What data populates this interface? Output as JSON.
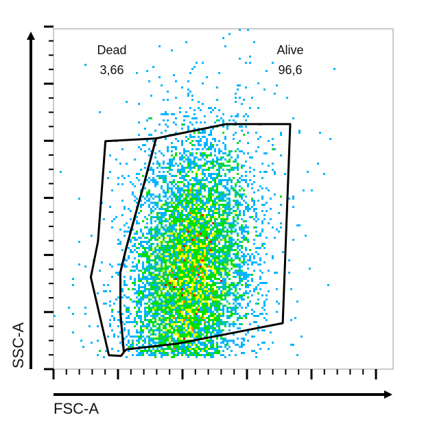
{
  "chart_data": {
    "type": "scatter",
    "subtype": "flow-cytometry density plot with gates",
    "xlabel": "FSC-A",
    "ylabel": "SSC-A",
    "xlim": [
      0,
      1
    ],
    "ylim": [
      0,
      1
    ],
    "grid": false,
    "density_colormap": [
      "#0000ff",
      "#00b4ff",
      "#00e000",
      "#ffff00",
      "#ff8000",
      "#ff0000"
    ],
    "population": {
      "center": [
        0.4,
        0.27
      ],
      "spread": [
        0.085,
        0.19
      ],
      "orientation_deg": 18,
      "events": 9000
    },
    "gates": [
      {
        "name": "Dead",
        "label": "Dead",
        "value": "3,66",
        "label_position": "top-left",
        "vertices": [
          [
            0.153,
            0.67
          ],
          [
            0.302,
            0.678
          ],
          [
            0.264,
            0.535
          ],
          [
            0.24,
            0.45
          ],
          [
            0.214,
            0.355
          ],
          [
            0.197,
            0.285
          ],
          [
            0.197,
            0.165
          ],
          [
            0.207,
            0.05
          ],
          [
            0.199,
            0.039
          ],
          [
            0.163,
            0.041
          ],
          [
            0.11,
            0.27
          ],
          [
            0.131,
            0.375
          ]
        ]
      },
      {
        "name": "Alive",
        "label": "Alive",
        "value": "96,6",
        "label_position": "top-right",
        "vertices": [
          [
            0.302,
            0.678
          ],
          [
            0.508,
            0.72
          ],
          [
            0.697,
            0.72
          ],
          [
            0.675,
            0.135
          ],
          [
            0.365,
            0.075
          ],
          [
            0.215,
            0.058
          ],
          [
            0.207,
            0.05
          ],
          [
            0.197,
            0.165
          ],
          [
            0.197,
            0.285
          ],
          [
            0.214,
            0.355
          ],
          [
            0.24,
            0.45
          ],
          [
            0.264,
            0.535
          ]
        ]
      }
    ]
  }
}
